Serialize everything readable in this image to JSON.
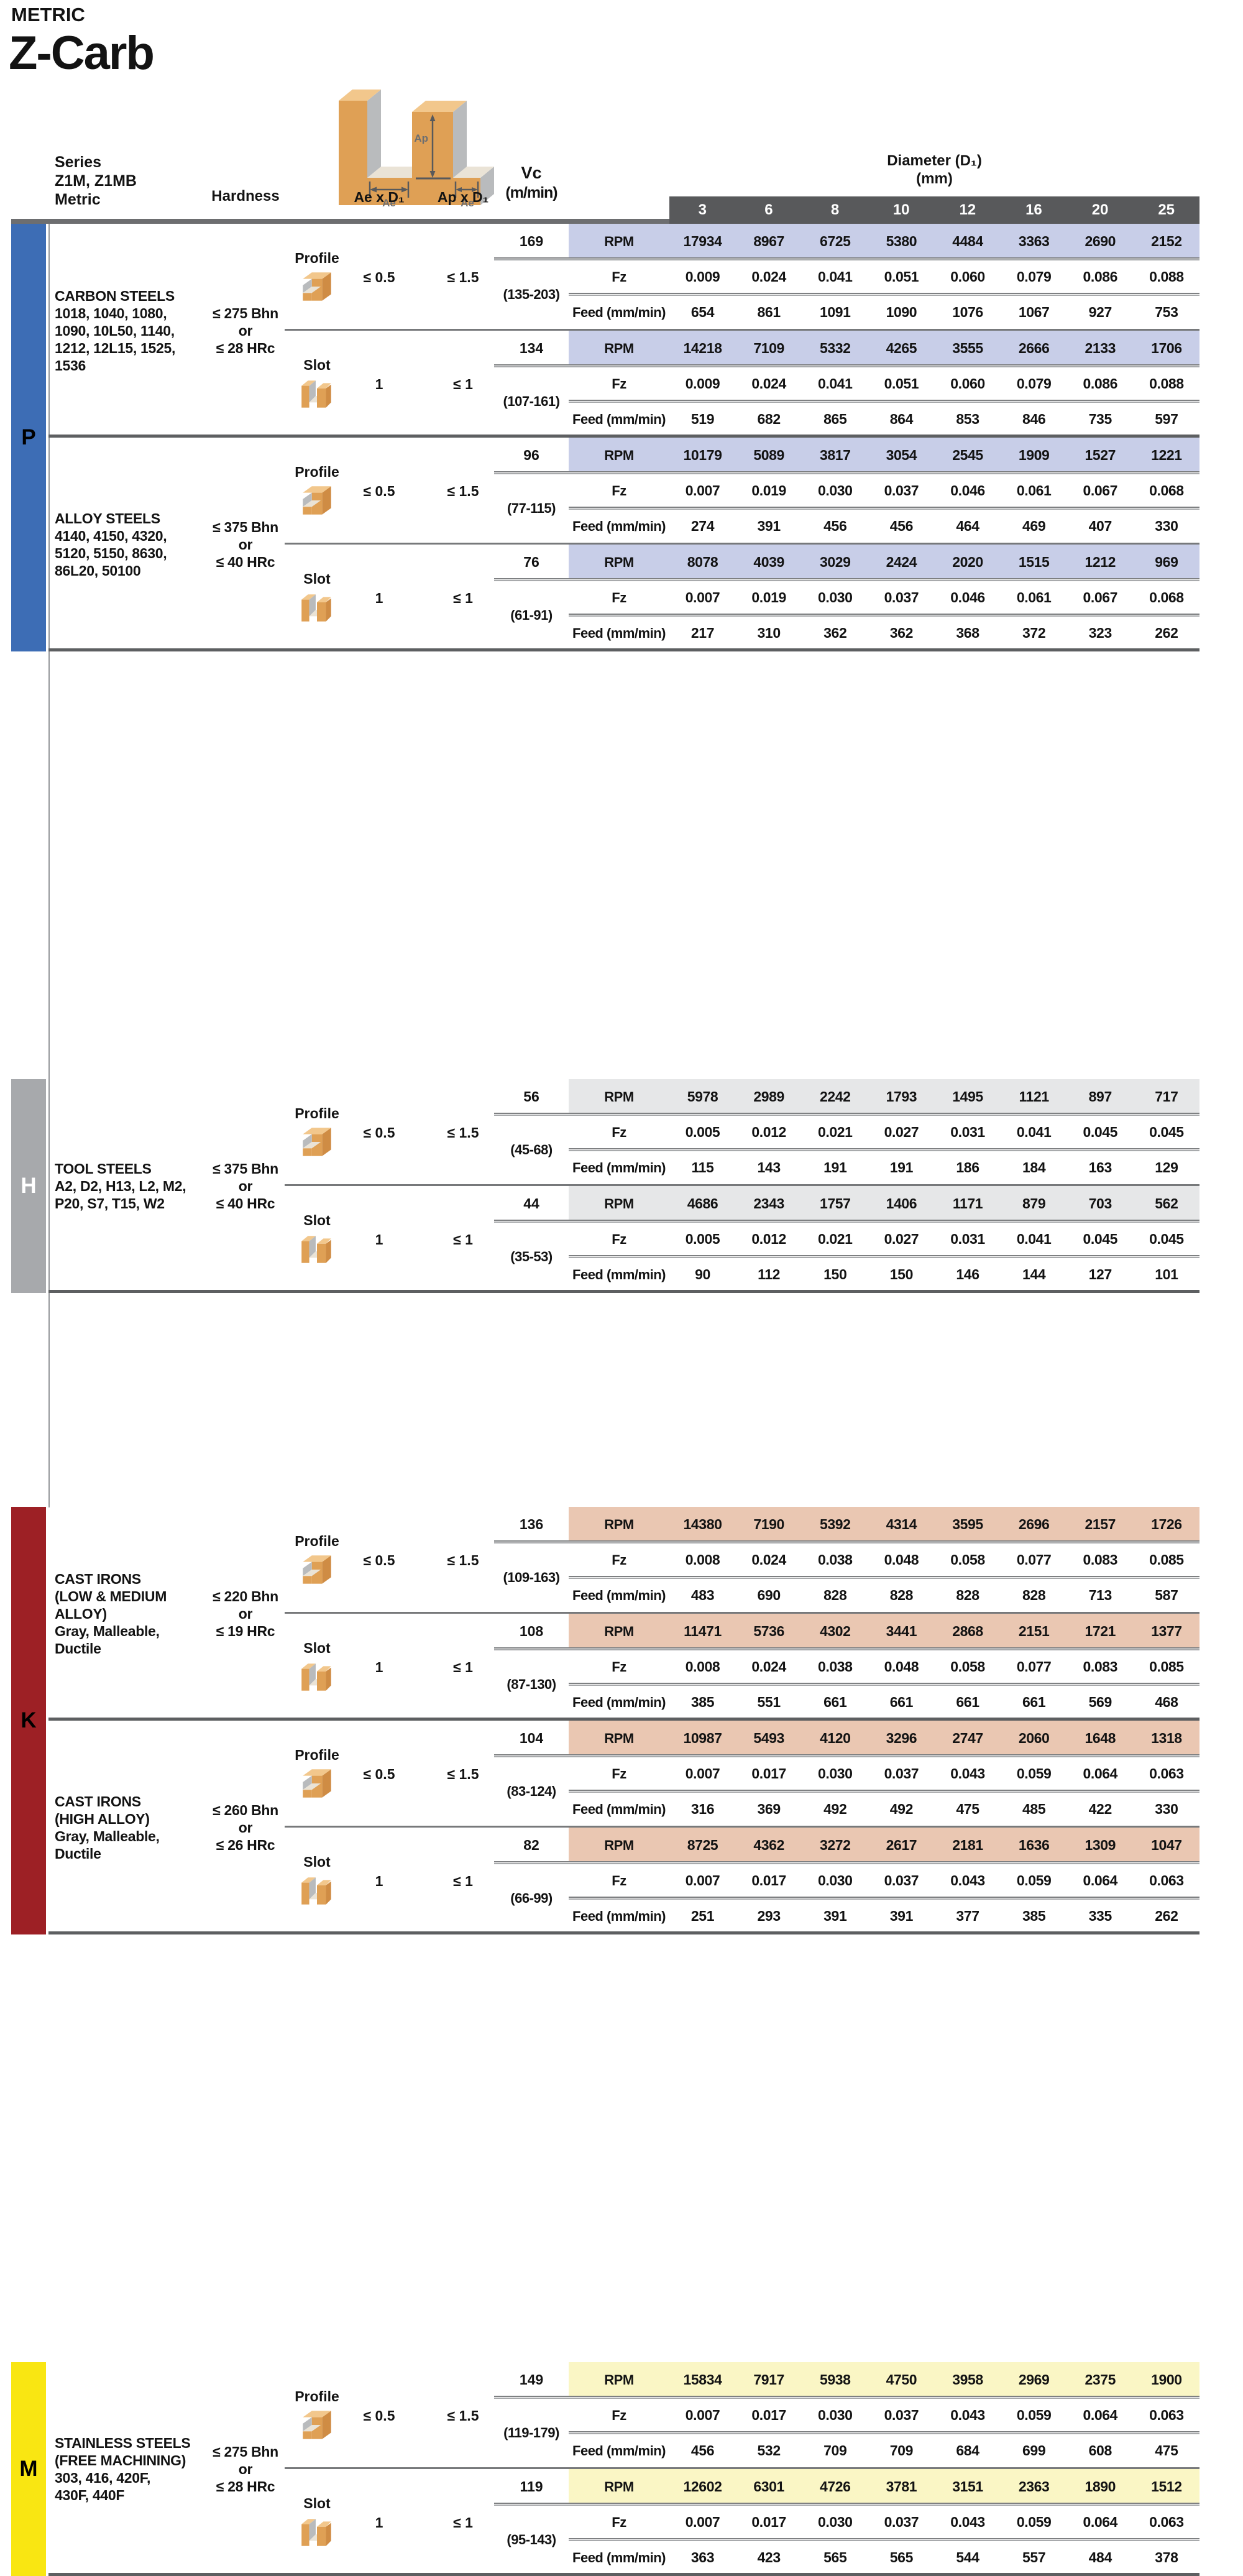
{
  "page": {
    "kicker": "METRIC",
    "title": "Z-Carb"
  },
  "header": {
    "series_lines": [
      "Series",
      "Z1M, Z1MB",
      "Metric"
    ],
    "hardness_label": "Hardness",
    "ae_col_label": "Ae x D₁",
    "ap_col_label": "Ap x D₁",
    "vc_label": "Vc",
    "vc_unit": "(m/min)",
    "diameter_title": "Diameter (D₁)",
    "diameter_unit": "(mm)",
    "diameters": [
      "3",
      "6",
      "8",
      "10",
      "12",
      "16",
      "20",
      "25"
    ],
    "header_bar_color": "#58595b"
  },
  "diagram": {
    "ap_label": "Ap",
    "ae_label": "Ae"
  },
  "row_labels": {
    "rpm": "RPM",
    "fz": "Fz",
    "feed": "Feed (mm/min)"
  },
  "sections": [
    {
      "letter": "P",
      "colors": {
        "bar": "#3d6db5",
        "letter": "#000000",
        "band": "#c8cee8"
      },
      "blocks": [
        {
          "material_lines": [
            "CARBON STEELS",
            "1018, 1040, 1080,",
            "1090, 10L50, 1140,",
            "1212, 12L15, 1525,",
            "1536"
          ],
          "hardness_lines": [
            "≤ 275 Bhn",
            "or",
            "≤ 28 HRc"
          ],
          "subs": [
            {
              "mode": "Profile",
              "icon": "profile",
              "ae": "≤ 0.5",
              "ap": "≤ 1.5",
              "vc": "169",
              "vc_range": "(135-203)",
              "rpm": [
                "17934",
                "8967",
                "6725",
                "5380",
                "4484",
                "3363",
                "2690",
                "2152"
              ],
              "fz": [
                "0.009",
                "0.024",
                "0.041",
                "0.051",
                "0.060",
                "0.079",
                "0.086",
                "0.088"
              ],
              "feed": [
                "654",
                "861",
                "1091",
                "1090",
                "1076",
                "1067",
                "927",
                "753"
              ]
            },
            {
              "mode": "Slot",
              "icon": "slot",
              "ae": "1",
              "ap": "≤ 1",
              "vc": "134",
              "vc_range": "(107-161)",
              "rpm": [
                "14218",
                "7109",
                "5332",
                "4265",
                "3555",
                "2666",
                "2133",
                "1706"
              ],
              "fz": [
                "0.009",
                "0.024",
                "0.041",
                "0.051",
                "0.060",
                "0.079",
                "0.086",
                "0.088"
              ],
              "feed": [
                "519",
                "682",
                "865",
                "864",
                "853",
                "846",
                "735",
                "597"
              ]
            }
          ]
        },
        {
          "material_lines": [
            "ALLOY STEELS",
            "4140, 4150, 4320,",
            "5120, 5150, 8630,",
            "86L20, 50100"
          ],
          "hardness_lines": [
            "≤ 375 Bhn",
            "or",
            "≤ 40 HRc"
          ],
          "subs": [
            {
              "mode": "Profile",
              "icon": "profile",
              "ae": "≤ 0.5",
              "ap": "≤ 1.5",
              "vc": "96",
              "vc_range": "(77-115)",
              "rpm": [
                "10179",
                "5089",
                "3817",
                "3054",
                "2545",
                "1909",
                "1527",
                "1221"
              ],
              "fz": [
                "0.007",
                "0.019",
                "0.030",
                "0.037",
                "0.046",
                "0.061",
                "0.067",
                "0.068"
              ],
              "feed": [
                "274",
                "391",
                "456",
                "456",
                "464",
                "469",
                "407",
                "330"
              ]
            },
            {
              "mode": "Slot",
              "icon": "slot",
              "ae": "1",
              "ap": "≤ 1",
              "vc": "76",
              "vc_range": "(61-91)",
              "rpm": [
                "8078",
                "4039",
                "3029",
                "2424",
                "2020",
                "1515",
                "1212",
                "969"
              ],
              "fz": [
                "0.007",
                "0.019",
                "0.030",
                "0.037",
                "0.046",
                "0.061",
                "0.067",
                "0.068"
              ],
              "feed": [
                "217",
                "310",
                "362",
                "362",
                "368",
                "372",
                "323",
                "262"
              ]
            }
          ]
        }
      ]
    },
    {
      "letter": "H",
      "colors": {
        "bar": "#a7a9ac",
        "letter": "#ffffff",
        "band": "#e6e7e8"
      },
      "blocks": [
        {
          "material_lines": [
            "TOOL STEELS",
            "A2, D2, H13, L2, M2,",
            "P20, S7, T15, W2"
          ],
          "hardness_lines": [
            "≤ 375 Bhn",
            "or",
            "≤ 40 HRc"
          ],
          "subs": [
            {
              "mode": "Profile",
              "icon": "profile",
              "ae": "≤ 0.5",
              "ap": "≤ 1.5",
              "vc": "56",
              "vc_range": "(45-68)",
              "rpm": [
                "5978",
                "2989",
                "2242",
                "1793",
                "1495",
                "1121",
                "897",
                "717"
              ],
              "fz": [
                "0.005",
                "0.012",
                "0.021",
                "0.027",
                "0.031",
                "0.041",
                "0.045",
                "0.045"
              ],
              "feed": [
                "115",
                "143",
                "191",
                "191",
                "186",
                "184",
                "163",
                "129"
              ]
            },
            {
              "mode": "Slot",
              "icon": "slot",
              "ae": "1",
              "ap": "≤ 1",
              "vc": "44",
              "vc_range": "(35-53)",
              "rpm": [
                "4686",
                "2343",
                "1757",
                "1406",
                "1171",
                "879",
                "703",
                "562"
              ],
              "fz": [
                "0.005",
                "0.012",
                "0.021",
                "0.027",
                "0.031",
                "0.041",
                "0.045",
                "0.045"
              ],
              "feed": [
                "90",
                "112",
                "150",
                "150",
                "146",
                "144",
                "127",
                "101"
              ]
            }
          ]
        }
      ]
    },
    {
      "letter": "K",
      "colors": {
        "bar": "#9d2025",
        "letter": "#000000",
        "band": "#eac7b2"
      },
      "blocks": [
        {
          "material_lines": [
            "CAST IRONS",
            "(LOW & MEDIUM",
            "ALLOY)",
            "Gray, Malleable,",
            "Ductile"
          ],
          "hardness_lines": [
            "≤ 220 Bhn",
            "or",
            "≤ 19 HRc"
          ],
          "subs": [
            {
              "mode": "Profile",
              "icon": "profile",
              "ae": "≤ 0.5",
              "ap": "≤ 1.5",
              "vc": "136",
              "vc_range": "(109-163)",
              "rpm": [
                "14380",
                "7190",
                "5392",
                "4314",
                "3595",
                "2696",
                "2157",
                "1726"
              ],
              "fz": [
                "0.008",
                "0.024",
                "0.038",
                "0.048",
                "0.058",
                "0.077",
                "0.083",
                "0.085"
              ],
              "feed": [
                "483",
                "690",
                "828",
                "828",
                "828",
                "828",
                "713",
                "587"
              ]
            },
            {
              "mode": "Slot",
              "icon": "slot",
              "ae": "1",
              "ap": "≤ 1",
              "vc": "108",
              "vc_range": "(87-130)",
              "rpm": [
                "11471",
                "5736",
                "4302",
                "3441",
                "2868",
                "2151",
                "1721",
                "1377"
              ],
              "fz": [
                "0.008",
                "0.024",
                "0.038",
                "0.048",
                "0.058",
                "0.077",
                "0.083",
                "0.085"
              ],
              "feed": [
                "385",
                "551",
                "661",
                "661",
                "661",
                "661",
                "569",
                "468"
              ]
            }
          ]
        },
        {
          "material_lines": [
            "CAST IRONS",
            "(HIGH ALLOY)",
            "Gray, Malleable,",
            "Ductile"
          ],
          "hardness_lines": [
            "≤ 260 Bhn",
            "or",
            "≤ 26 HRc"
          ],
          "subs": [
            {
              "mode": "Profile",
              "icon": "profile",
              "ae": "≤ 0.5",
              "ap": "≤ 1.5",
              "vc": "104",
              "vc_range": "(83-124)",
              "rpm": [
                "10987",
                "5493",
                "4120",
                "3296",
                "2747",
                "2060",
                "1648",
                "1318"
              ],
              "fz": [
                "0.007",
                "0.017",
                "0.030",
                "0.037",
                "0.043",
                "0.059",
                "0.064",
                "0.063"
              ],
              "feed": [
                "316",
                "369",
                "492",
                "492",
                "475",
                "485",
                "422",
                "330"
              ]
            },
            {
              "mode": "Slot",
              "icon": "slot",
              "ae": "1",
              "ap": "≤ 1",
              "vc": "82",
              "vc_range": "(66-99)",
              "rpm": [
                "8725",
                "4362",
                "3272",
                "2617",
                "2181",
                "1636",
                "1309",
                "1047"
              ],
              "fz": [
                "0.007",
                "0.017",
                "0.030",
                "0.037",
                "0.043",
                "0.059",
                "0.064",
                "0.063"
              ],
              "feed": [
                "251",
                "293",
                "391",
                "391",
                "377",
                "385",
                "335",
                "262"
              ]
            }
          ]
        }
      ]
    },
    {
      "letter": "M",
      "colors": {
        "bar": "#f9e612",
        "letter": "#000000",
        "band": "#faf6c5"
      },
      "blocks": [
        {
          "material_lines": [
            "STAINLESS STEELS",
            "(FREE MACHINING)",
            "303, 416, 420F,",
            "430F, 440F"
          ],
          "hardness_lines": [
            "≤ 275 Bhn",
            "or",
            "≤ 28 HRc"
          ],
          "subs": [
            {
              "mode": "Profile",
              "icon": "profile",
              "ae": "≤ 0.5",
              "ap": "≤ 1.5",
              "vc": "149",
              "vc_range": "(119-179)",
              "rpm": [
                "15834",
                "7917",
                "5938",
                "4750",
                "3958",
                "2969",
                "2375",
                "1900"
              ],
              "fz": [
                "0.007",
                "0.017",
                "0.030",
                "0.037",
                "0.043",
                "0.059",
                "0.064",
                "0.063"
              ],
              "feed": [
                "456",
                "532",
                "709",
                "709",
                "684",
                "699",
                "608",
                "475"
              ]
            },
            {
              "mode": "Slot",
              "icon": "slot",
              "ae": "1",
              "ap": "≤ 1",
              "vc": "119",
              "vc_range": "(95-143)",
              "rpm": [
                "12602",
                "6301",
                "4726",
                "3781",
                "3151",
                "2363",
                "1890",
                "1512"
              ],
              "fz": [
                "0.007",
                "0.017",
                "0.030",
                "0.037",
                "0.043",
                "0.059",
                "0.064",
                "0.063"
              ],
              "feed": [
                "363",
                "423",
                "565",
                "565",
                "544",
                "557",
                "484",
                "378"
              ]
            }
          ]
        }
      ]
    }
  ]
}
